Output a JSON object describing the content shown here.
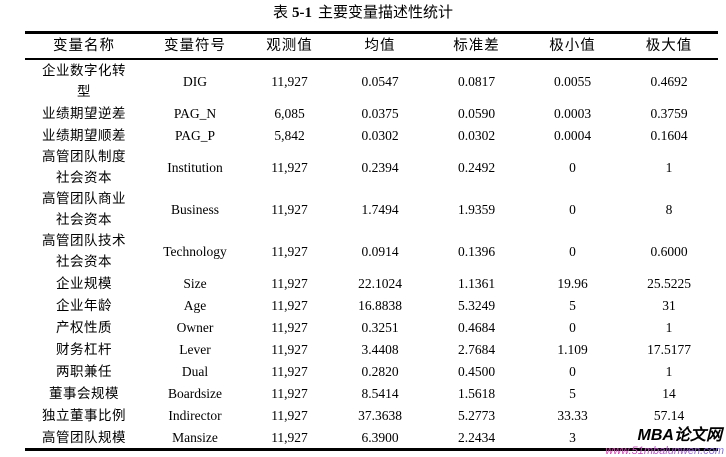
{
  "title": {
    "prefix": "表",
    "number": "5-1",
    "text": "主要变量描述性统计"
  },
  "table": {
    "headers": [
      "变量名称",
      "变量符号",
      "观测值",
      "均值",
      "标准差",
      "极小值",
      "极大值"
    ],
    "col_keys": [
      "name",
      "symbol",
      "obs",
      "mean",
      "sd",
      "min",
      "max"
    ],
    "rows": [
      {
        "name": "企业数字化转\n型",
        "symbol": "DIG",
        "obs": "11,927",
        "mean": "0.0547",
        "sd": "0.0817",
        "min": "0.0055",
        "max": "0.4692"
      },
      {
        "name": "业绩期望逆差",
        "symbol": "PAG_N",
        "obs": "6,085",
        "mean": "0.0375",
        "sd": "0.0590",
        "min": "0.0003",
        "max": "0.3759"
      },
      {
        "name": "业绩期望顺差",
        "symbol": "PAG_P",
        "obs": "5,842",
        "mean": "0.0302",
        "sd": "0.0302",
        "min": "0.0004",
        "max": "0.1604"
      },
      {
        "name": "高管团队制度\n社会资本",
        "symbol": "Institution",
        "obs": "11,927",
        "mean": "0.2394",
        "sd": "0.2492",
        "min": "0",
        "max": "1"
      },
      {
        "name": "高管团队商业\n社会资本",
        "symbol": "Business",
        "obs": "11,927",
        "mean": "1.7494",
        "sd": "1.9359",
        "min": "0",
        "max": "8"
      },
      {
        "name": "高管团队技术\n社会资本",
        "symbol": "Technology",
        "obs": "11,927",
        "mean": "0.0914",
        "sd": "0.1396",
        "min": "0",
        "max": "0.6000"
      },
      {
        "name": "企业规模",
        "symbol": "Size",
        "obs": "11,927",
        "mean": "22.1024",
        "sd": "1.1361",
        "min": "19.96",
        "max": "25.5225"
      },
      {
        "name": "企业年龄",
        "symbol": "Age",
        "obs": "11,927",
        "mean": "16.8838",
        "sd": "5.3249",
        "min": "5",
        "max": "31"
      },
      {
        "name": "产权性质",
        "symbol": "Owner",
        "obs": "11,927",
        "mean": "0.3251",
        "sd": "0.4684",
        "min": "0",
        "max": "1"
      },
      {
        "name": "财务杠杆",
        "symbol": "Lever",
        "obs": "11,927",
        "mean": "3.4408",
        "sd": "2.7684",
        "min": "1.109",
        "max": "17.5177"
      },
      {
        "name": "两职兼任",
        "symbol": "Dual",
        "obs": "11,927",
        "mean": "0.2820",
        "sd": "0.4500",
        "min": "0",
        "max": "1"
      },
      {
        "name": "董事会规模",
        "symbol": "Boardsize",
        "obs": "11,927",
        "mean": "8.5414",
        "sd": "1.5618",
        "min": "5",
        "max": "14"
      },
      {
        "name": "独立董事比例",
        "symbol": "Indirector",
        "obs": "11,927",
        "mean": "37.3638",
        "sd": "5.2773",
        "min": "33.33",
        "max": "57.14"
      },
      {
        "name": "高管团队规模",
        "symbol": "Mansize",
        "obs": "11,927",
        "mean": "6.3900",
        "sd": "2.2434",
        "min": "3",
        "max": ""
      }
    ]
  },
  "watermark": {
    "title": "MBA论文网",
    "url": "www.51mbalunwen.com",
    "url_color_start": "#e43bb2",
    "url_color_end": "#7d6ee0"
  },
  "colors": {
    "text": "#000000",
    "background": "#ffffff",
    "table_border": "#000000"
  }
}
